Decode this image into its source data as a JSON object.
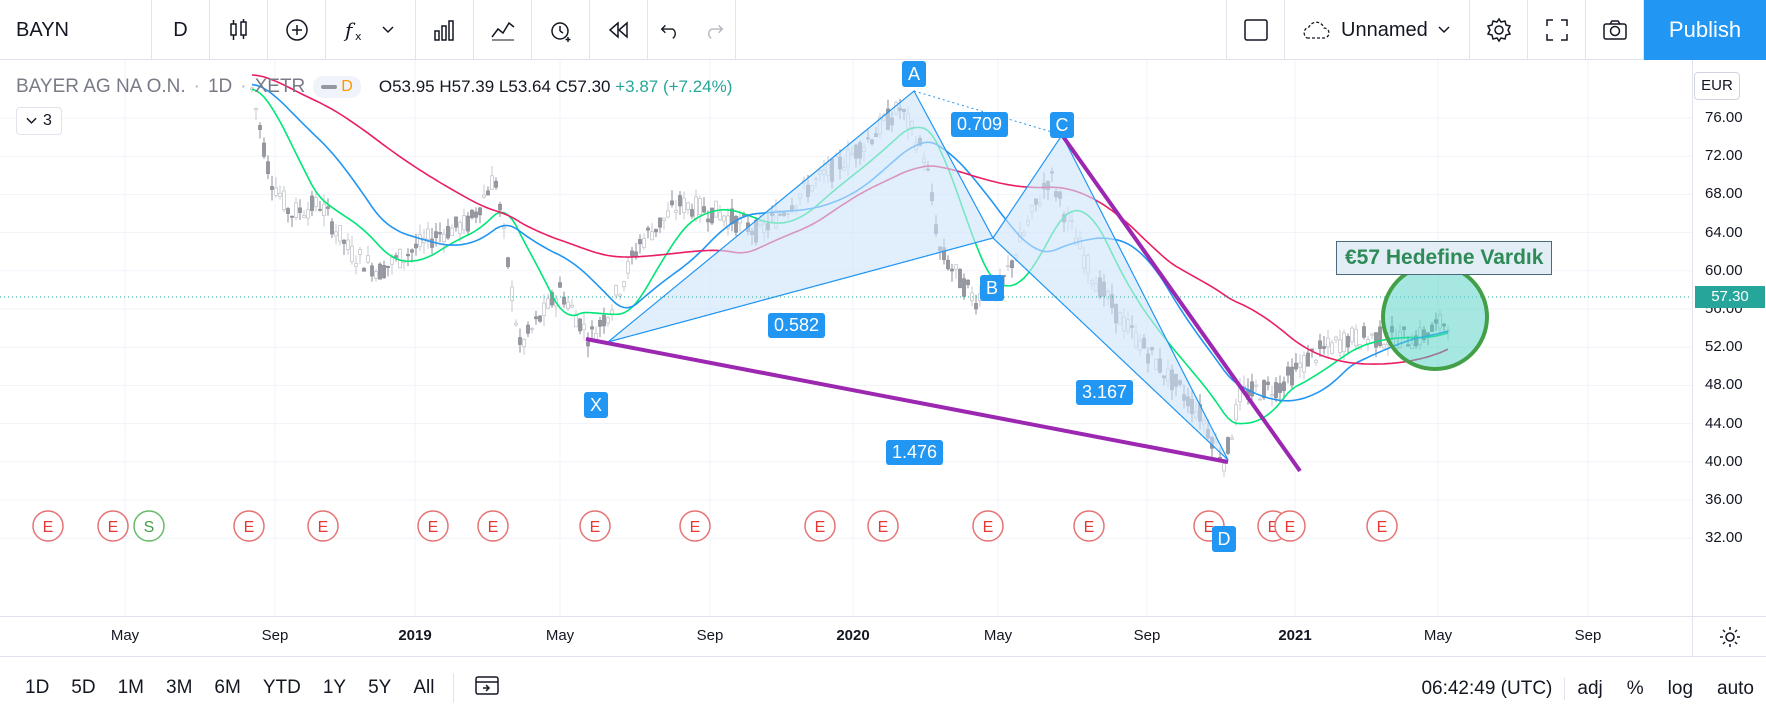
{
  "toolbar": {
    "symbol": "BAYN",
    "interval": "D",
    "layout_name": "Unnamed",
    "publish_label": "Publish"
  },
  "legend": {
    "name": "BAYER AG NA O.N.",
    "interval": "1D",
    "exchange": "XETR",
    "toggle_letter": "D",
    "open": "O53.95",
    "high": "H57.39",
    "low": "L53.64",
    "close": "C57.30",
    "change": "+3.87 (+7.24%)",
    "indicators_count": "3"
  },
  "currency": "EUR",
  "last_price": "57.30",
  "price_axis": [
    "76.00",
    "72.00",
    "68.00",
    "64.00",
    "60.00",
    "56.00",
    "52.00",
    "48.00",
    "44.00",
    "40.00",
    "36.00",
    "32.00"
  ],
  "time_axis": [
    {
      "label": "May",
      "bold": false
    },
    {
      "label": "Sep",
      "bold": false
    },
    {
      "label": "2019",
      "bold": true
    },
    {
      "label": "May",
      "bold": false
    },
    {
      "label": "Sep",
      "bold": false
    },
    {
      "label": "2020",
      "bold": true
    },
    {
      "label": "May",
      "bold": false
    },
    {
      "label": "Sep",
      "bold": false
    },
    {
      "label": "2021",
      "bold": true
    },
    {
      "label": "May",
      "bold": false
    },
    {
      "label": "Sep",
      "bold": false
    }
  ],
  "pattern": {
    "points": [
      "X",
      "A",
      "B",
      "C",
      "D"
    ],
    "ratios": [
      "0.709",
      "0.582",
      "3.167",
      "1.476"
    ]
  },
  "annotation": "€57 Hedefine Vardık",
  "event_letters": [
    "E",
    "S"
  ],
  "bottom": {
    "ranges": [
      "1D",
      "5D",
      "1M",
      "3M",
      "6M",
      "YTD",
      "1Y",
      "5Y",
      "All"
    ],
    "clock": "06:42:49 (UTC)",
    "adj": "adj",
    "percent": "%",
    "log": "log",
    "auto": "auto"
  },
  "colors": {
    "accent": "#2196f3",
    "up": "#26a69a",
    "trendline": "#9c27b0",
    "ma_fast": "#00e676",
    "ma_mid": "#2196f3",
    "ma_slow": "#e91e63",
    "highlight_circle": "#43a047"
  }
}
